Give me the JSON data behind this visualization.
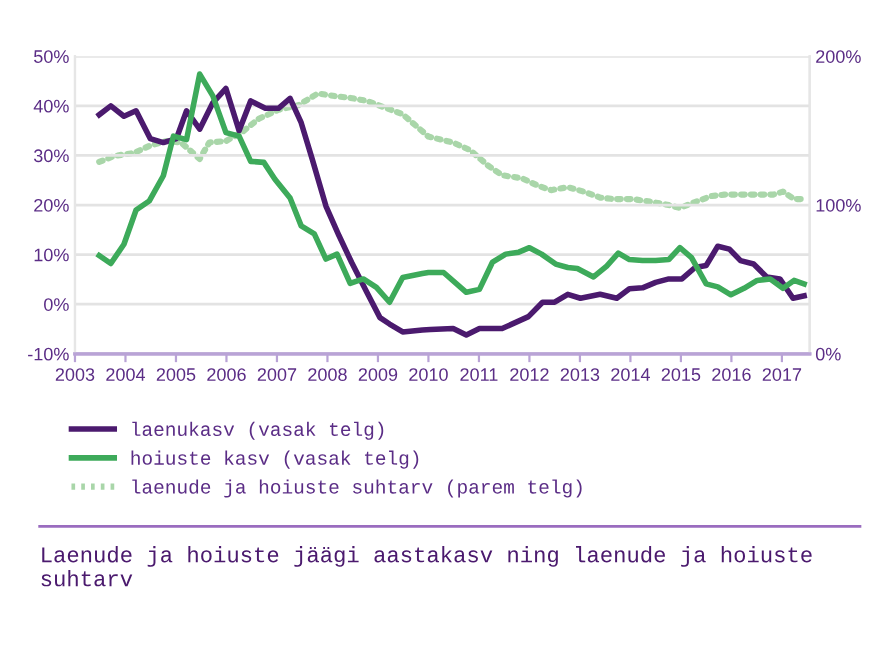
{
  "chart_data": {
    "type": "line",
    "title": "Laenude ja hoiuste jäägi aastakasv ning laenude ja hoiuste suhtarv",
    "xlim": [
      2003,
      2017.55
    ],
    "xticks": [
      2003,
      2004,
      2005,
      2006,
      2007,
      2008,
      2009,
      2010,
      2011,
      2012,
      2013,
      2014,
      2015,
      2016,
      2017
    ],
    "ylim": [
      -10,
      50
    ],
    "yticks": [
      {
        "value": -10,
        "label": "-10%"
      },
      {
        "value": 0,
        "label": "0%"
      },
      {
        "value": 10,
        "label": "10%"
      },
      {
        "value": 20,
        "label": "20%"
      },
      {
        "value": 30,
        "label": "30%"
      },
      {
        "value": 40,
        "label": "40%"
      },
      {
        "value": 50,
        "label": "50%"
      }
    ],
    "y2lim": [
      0,
      200
    ],
    "y2ticks": [
      {
        "value": 0,
        "label": "0%"
      },
      {
        "value": 100,
        "label": "100%"
      },
      {
        "value": 200,
        "label": "200%"
      }
    ],
    "grid": "y",
    "legend": "bottom",
    "series": [
      {
        "name": "laenukasv (vasak telg)",
        "color": "#4b1a6e",
        "line_style": "solid",
        "x": [
          2003.48,
          2003.71,
          2003.97,
          2004.21,
          2004.49,
          2004.75,
          2005.01,
          2005.21,
          2005.47,
          2005.73,
          2005.99,
          2006.25,
          2006.48,
          2006.77,
          2007.03,
          2007.26,
          2007.48,
          2007.7,
          2007.97,
          2008.23,
          2008.48,
          2008.78,
          2009.04,
          2009.23,
          2009.49,
          2009.88,
          2010.04,
          2010.49,
          2010.75,
          2011.01,
          2011.46,
          2011.98,
          2012.26,
          2012.5,
          2012.76,
          2013.01,
          2013.4,
          2013.73,
          2013.98,
          2014.24,
          2014.5,
          2014.76,
          2015.02,
          2015.28,
          2015.5,
          2015.73,
          2015.96,
          2016.18,
          2016.44,
          2016.7,
          2016.96,
          2017.22,
          2017.44
        ],
        "values": [
          38.2,
          40,
          37.9,
          39,
          33.4,
          32.6,
          33.4,
          39,
          35.3,
          40.6,
          43.5,
          35,
          41,
          39.5,
          39.5,
          41.5,
          36.6,
          29.2,
          19.8,
          13.8,
          8.4,
          2.4,
          -2.7,
          -4,
          -5.6,
          -5.2,
          -5.1,
          -4.9,
          -6.2,
          -4.9,
          -4.9,
          -2.5,
          0.4,
          0.4,
          2,
          1.2,
          2,
          1.2,
          3.1,
          3.3,
          4.4,
          5.1,
          5.1,
          7.4,
          7.8,
          11.7,
          11.1,
          8.8,
          8.1,
          5.5,
          5.1,
          1.2,
          1.7
        ]
      },
      {
        "name": "hoiuste kasv (vasak telg)",
        "color": "#3daa5a",
        "line_style": "solid",
        "x": [
          2003.48,
          2003.71,
          2003.97,
          2004.21,
          2004.47,
          2004.75,
          2004.95,
          2005.21,
          2005.47,
          2005.73,
          2005.99,
          2006.25,
          2006.48,
          2006.74,
          2006.96,
          2007.26,
          2007.48,
          2007.74,
          2007.97,
          2008.19,
          2008.45,
          2008.71,
          2008.97,
          2009.23,
          2009.49,
          2009.88,
          2010,
          2010.3,
          2010.75,
          2011.01,
          2011.27,
          2011.53,
          2011.79,
          2012,
          2012.24,
          2012.52,
          2012.76,
          2012.95,
          2013.27,
          2013.53,
          2013.76,
          2013.98,
          2014.24,
          2014.5,
          2014.76,
          2014.98,
          2015.21,
          2015.5,
          2015.73,
          2015.99,
          2016.25,
          2016.51,
          2016.77,
          2017.02,
          2017.24,
          2017.44
        ],
        "values": [
          9.8,
          8.2,
          12.1,
          19,
          20.8,
          25.9,
          33.9,
          33.2,
          46.4,
          42,
          34.6,
          33.9,
          28.8,
          28.6,
          25.2,
          21.4,
          15.8,
          14.2,
          9.1,
          10.1,
          4.2,
          5.1,
          3.4,
          0.4,
          5.4,
          6.2,
          6.4,
          6.4,
          2.4,
          3,
          8.5,
          10.1,
          10.5,
          11.4,
          10.1,
          8.1,
          7.4,
          7.2,
          5.5,
          7.7,
          10.3,
          9,
          8.8,
          8.8,
          9,
          11.4,
          9.4,
          4.1,
          3.5,
          1.9,
          3.2,
          4.8,
          5.1,
          3.2,
          4.8,
          4.1
        ]
      },
      {
        "name": "laenude ja hoiuste suhtarv (parem telg)",
        "color": "#a9d6a9",
        "line_style": "dotted",
        "axis": "y2",
        "x": [
          2003.48,
          2003.78,
          2004.17,
          2004.49,
          2004.82,
          2005.1,
          2005.27,
          2005.47,
          2005.66,
          2005.99,
          2006.31,
          2006.64,
          2007.03,
          2007.42,
          2007.81,
          2008.19,
          2008.45,
          2008.78,
          2009.1,
          2009.49,
          2010,
          2010.49,
          2010.82,
          2011.2,
          2011.46,
          2011.85,
          2012.17,
          2012.43,
          2012.76,
          2013.08,
          2013.4,
          2013.66,
          2014.05,
          2014.44,
          2014.76,
          2014.98,
          2015.28,
          2015.6,
          2015.86,
          2016.18,
          2016.51,
          2016.83,
          2017.02,
          2017.24,
          2017.44
        ],
        "values": [
          129,
          133,
          135,
          140,
          143,
          142,
          137,
          131,
          142,
          143,
          149,
          158,
          164,
          167,
          175,
          173,
          172,
          170,
          166,
          161,
          146,
          142,
          137,
          126,
          120,
          118,
          113,
          110,
          112,
          109,
          105,
          104,
          104,
          102,
          100,
          98,
          102,
          106,
          107,
          107,
          107,
          107,
          109,
          104,
          104
        ]
      }
    ]
  }
}
